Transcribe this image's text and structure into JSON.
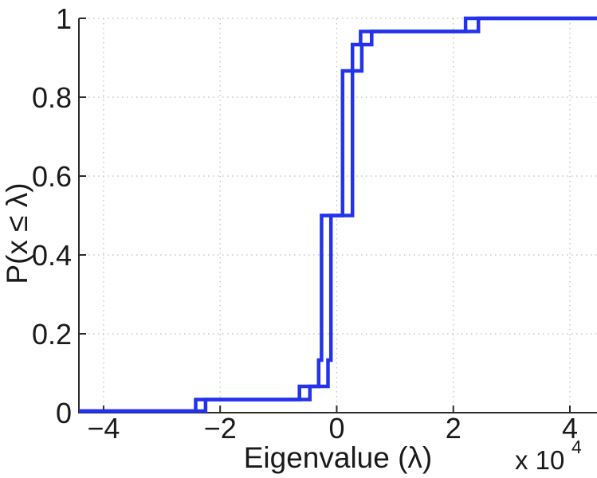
{
  "chart_data": {
    "type": "line",
    "subtype": "ecdf-staircase",
    "title": "",
    "xlabel": "Eigenvalue (λ)",
    "ylabel": "P(x ≤ λ)",
    "x_multiplier_base": "x 10",
    "x_multiplier_exp": "4",
    "x_units_note": "x axis values are in units of 10^4",
    "xlim": [
      -4.423,
      4.465
    ],
    "ylim": [
      0,
      1
    ],
    "grid": "dotted",
    "legend": "none",
    "line_color": "#2433EB",
    "axis_color": "#2b2b2b",
    "grid_color": "#bdbdbd",
    "x_ticks": [
      {
        "value": -4,
        "label": "−4"
      },
      {
        "value": -2,
        "label": "−2"
      },
      {
        "value": 0,
        "label": "0"
      },
      {
        "value": 2,
        "label": "2"
      },
      {
        "value": 4,
        "label": "4"
      }
    ],
    "y_ticks": [
      {
        "value": 0,
        "label": "0"
      },
      {
        "value": 0.2,
        "label": "0.2"
      },
      {
        "value": 0.4,
        "label": "0.4"
      },
      {
        "value": 0.6,
        "label": "0.6"
      },
      {
        "value": 0.8,
        "label": "0.8"
      },
      {
        "value": 1,
        "label": "1"
      }
    ],
    "series": [
      {
        "name": "ecdf-curve-1",
        "jumps": [
          {
            "x": -2.42,
            "p": 0.0333
          },
          {
            "x": -0.64,
            "p": 0.0667
          },
          {
            "x": -0.31,
            "p": 0.1333
          },
          {
            "x": -0.26,
            "p": 0.5
          },
          {
            "x": 0.1,
            "p": 0.8667
          },
          {
            "x": 0.27,
            "p": 0.9333
          },
          {
            "x": 0.41,
            "p": 0.9667
          },
          {
            "x": 2.21,
            "p": 1.0
          }
        ]
      },
      {
        "name": "ecdf-curve-2",
        "jumps": [
          {
            "x": -2.25,
            "p": 0.0333
          },
          {
            "x": -0.46,
            "p": 0.0667
          },
          {
            "x": -0.15,
            "p": 0.1333
          },
          {
            "x": -0.1,
            "p": 0.5
          },
          {
            "x": 0.27,
            "p": 0.8667
          },
          {
            "x": 0.43,
            "p": 0.9333
          },
          {
            "x": 0.6,
            "p": 0.9667
          },
          {
            "x": 2.43,
            "p": 1.0
          }
        ]
      }
    ]
  }
}
